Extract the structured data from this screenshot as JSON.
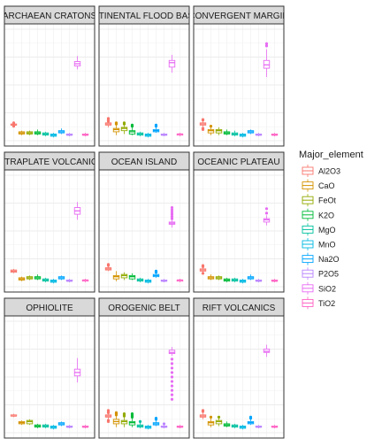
{
  "chart_data": {
    "type": "boxplot",
    "facet_layout": {
      "rows": 3,
      "cols": 3
    },
    "grid": true,
    "ylim": [
      0,
      100
    ],
    "legend": {
      "title": "Major_element",
      "position": "right",
      "entries": [
        {
          "name": "Al2O3",
          "color": "#F8766D"
        },
        {
          "name": "CaO",
          "color": "#D39200"
        },
        {
          "name": "FeOt",
          "color": "#93AA00"
        },
        {
          "name": "K2O",
          "color": "#00BA38"
        },
        {
          "name": "MgO",
          "color": "#00C19F"
        },
        {
          "name": "MnO",
          "color": "#00B9E3"
        },
        {
          "name": "Na2O",
          "color": "#00A5FF"
        },
        {
          "name": "P2O5",
          "color": "#B983FF"
        },
        {
          "name": "SiO2",
          "color": "#E76BF3"
        },
        {
          "name": "TiO2",
          "color": "#FF61C3"
        }
      ]
    },
    "categories": [
      "Al2O3",
      "CaO",
      "FeOt",
      "K2O",
      "MgO",
      "MnO",
      "Na2O",
      "P2O5",
      "SiO2",
      "TiO2"
    ],
    "panels": [
      {
        "title": "ARCHAEAN CRATONS",
        "boxes": [
          {
            "q1": 14,
            "med": 14,
            "q3": 15,
            "lo": 13,
            "hi": 16,
            "out": [
              13,
              14.5,
              16
            ]
          },
          {
            "q1": 6,
            "med": 7,
            "q3": 8,
            "lo": 5,
            "hi": 9,
            "out": []
          },
          {
            "q1": 6,
            "med": 7,
            "q3": 8,
            "lo": 5,
            "hi": 9,
            "out": []
          },
          {
            "q1": 6,
            "med": 7,
            "q3": 8,
            "lo": 5,
            "hi": 10,
            "out": []
          },
          {
            "q1": 5,
            "med": 6,
            "q3": 7,
            "lo": 4,
            "hi": 8,
            "out": []
          },
          {
            "q1": 4,
            "med": 5,
            "q3": 6,
            "lo": 3,
            "hi": 7,
            "out": []
          },
          {
            "q1": 7,
            "med": 8,
            "q3": 9,
            "lo": 6,
            "hi": 11,
            "out": []
          },
          {
            "q1": 5,
            "med": 5,
            "q3": 6,
            "lo": 4,
            "hi": 7,
            "out": []
          },
          {
            "q1": 67,
            "med": 69,
            "q3": 71,
            "lo": 64,
            "hi": 76,
            "out": []
          },
          {
            "q1": 5,
            "med": 5,
            "q3": 6,
            "lo": 4,
            "hi": 7,
            "out": []
          }
        ]
      },
      {
        "title": "CONTINENTAL FLOOD BASALT",
        "boxes": [
          {
            "q1": 14,
            "med": 15,
            "q3": 16,
            "lo": 12,
            "hi": 17,
            "out": [
              17.5,
              18,
              19,
              20
            ]
          },
          {
            "q1": 8,
            "med": 10,
            "q3": 11,
            "lo": 5,
            "hi": 14,
            "out": [
              15,
              16
            ]
          },
          {
            "q1": 9,
            "med": 11,
            "q3": 12,
            "lo": 6,
            "hi": 14,
            "out": [
              15,
              16
            ]
          },
          {
            "q1": 6,
            "med": 8,
            "q3": 9,
            "lo": 5,
            "hi": 12,
            "out": [
              13,
              14
            ]
          },
          {
            "q1": 5,
            "med": 6,
            "q3": 7,
            "lo": 4,
            "hi": 8,
            "out": []
          },
          {
            "q1": 4,
            "med": 5,
            "q3": 6,
            "lo": 3,
            "hi": 7,
            "out": []
          },
          {
            "q1": 8,
            "med": 9,
            "q3": 10,
            "lo": 7,
            "hi": 12,
            "out": [
              13,
              14
            ]
          },
          {
            "q1": 5,
            "med": 5,
            "q3": 6,
            "lo": 4,
            "hi": 7,
            "out": []
          },
          {
            "q1": 66,
            "med": 70,
            "q3": 72,
            "lo": 61,
            "hi": 77,
            "out": []
          },
          {
            "q1": 5,
            "med": 6,
            "q3": 6,
            "lo": 4,
            "hi": 7,
            "out": []
          }
        ]
      },
      {
        "title": "CONVERGENT MARGIN",
        "boxes": [
          {
            "q1": 14,
            "med": 15,
            "q3": 16,
            "lo": 12,
            "hi": 18,
            "out": [
              18.5,
              19,
              11,
              10
            ]
          },
          {
            "q1": 7,
            "med": 9,
            "q3": 10,
            "lo": 5,
            "hi": 12,
            "out": [
              13
            ]
          },
          {
            "q1": 7,
            "med": 9,
            "q3": 10,
            "lo": 5,
            "hi": 12,
            "out": []
          },
          {
            "q1": 6,
            "med": 7,
            "q3": 8,
            "lo": 5,
            "hi": 10,
            "out": []
          },
          {
            "q1": 5,
            "med": 6,
            "q3": 7,
            "lo": 4,
            "hi": 9,
            "out": []
          },
          {
            "q1": 4,
            "med": 5,
            "q3": 6,
            "lo": 3,
            "hi": 7,
            "out": []
          },
          {
            "q1": 7,
            "med": 8,
            "q3": 9,
            "lo": 6,
            "hi": 10,
            "out": []
          },
          {
            "q1": 5,
            "med": 5,
            "q3": 6,
            "lo": 4,
            "hi": 7,
            "out": []
          },
          {
            "q1": 65,
            "med": 68,
            "q3": 72,
            "lo": 57,
            "hi": 82,
            "out": [
              85,
              87
            ]
          },
          {
            "q1": 5,
            "med": 5,
            "q3": 6,
            "lo": 4,
            "hi": 7,
            "out": []
          }
        ]
      },
      {
        "title": "INTRAPLATE VOLCANICS",
        "boxes": [
          {
            "q1": 13,
            "med": 14,
            "q3": 15,
            "lo": 12,
            "hi": 16,
            "out": []
          },
          {
            "q1": 6,
            "med": 7,
            "q3": 8,
            "lo": 5,
            "hi": 9,
            "out": []
          },
          {
            "q1": 7,
            "med": 8,
            "q3": 9,
            "lo": 6,
            "hi": 10,
            "out": []
          },
          {
            "q1": 7,
            "med": 8,
            "q3": 9,
            "lo": 6,
            "hi": 11,
            "out": []
          },
          {
            "q1": 5,
            "med": 6,
            "q3": 7,
            "lo": 4,
            "hi": 8,
            "out": []
          },
          {
            "q1": 4,
            "med": 5,
            "q3": 6,
            "lo": 3,
            "hi": 7,
            "out": []
          },
          {
            "q1": 7,
            "med": 8,
            "q3": 9,
            "lo": 6,
            "hi": 10,
            "out": []
          },
          {
            "q1": 5,
            "med": 5,
            "q3": 6,
            "lo": 4,
            "hi": 7,
            "out": []
          },
          {
            "q1": 65,
            "med": 68,
            "q3": 71,
            "lo": 60,
            "hi": 76,
            "out": []
          },
          {
            "q1": 5,
            "med": 6,
            "q3": 6,
            "lo": 4,
            "hi": 7,
            "out": []
          }
        ]
      },
      {
        "title": "OCEAN ISLAND",
        "boxes": [
          {
            "q1": 15,
            "med": 16,
            "q3": 17,
            "lo": 14,
            "hi": 18,
            "out": [
              19,
              20
            ]
          },
          {
            "q1": 7,
            "med": 9,
            "q3": 10,
            "lo": 5,
            "hi": 14,
            "out": []
          },
          {
            "q1": 8,
            "med": 10,
            "q3": 11,
            "lo": 6,
            "hi": 13,
            "out": []
          },
          {
            "q1": 7,
            "med": 9,
            "q3": 10,
            "lo": 6,
            "hi": 12,
            "out": []
          },
          {
            "q1": 5,
            "med": 6,
            "q3": 7,
            "lo": 4,
            "hi": 8,
            "out": []
          },
          {
            "q1": 4,
            "med": 5,
            "q3": 6,
            "lo": 3,
            "hi": 7,
            "out": []
          },
          {
            "q1": 9,
            "med": 10,
            "q3": 11,
            "lo": 8,
            "hi": 12,
            "out": [
              13,
              14
            ]
          },
          {
            "q1": 5,
            "med": 5,
            "q3": 6,
            "lo": 4,
            "hi": 7,
            "out": []
          },
          {
            "q1": 56,
            "med": 57,
            "q3": 58,
            "lo": 53,
            "hi": 60,
            "out": [
              61,
              63,
              65,
              67,
              69,
              71
            ]
          },
          {
            "q1": 5,
            "med": 6,
            "q3": 6,
            "lo": 4,
            "hi": 7,
            "out": []
          }
        ]
      },
      {
        "title": "OCEANIC PLATEAU",
        "boxes": [
          {
            "q1": 14,
            "med": 15,
            "q3": 16,
            "lo": 13,
            "hi": 17,
            "out": [
              18,
              19,
              12
            ]
          },
          {
            "q1": 7,
            "med": 8,
            "q3": 9,
            "lo": 6,
            "hi": 11,
            "out": []
          },
          {
            "q1": 7,
            "med": 8,
            "q3": 9,
            "lo": 6,
            "hi": 10,
            "out": []
          },
          {
            "q1": 5,
            "med": 6,
            "q3": 7,
            "lo": 4,
            "hi": 8,
            "out": []
          },
          {
            "q1": 5,
            "med": 6,
            "q3": 7,
            "lo": 4,
            "hi": 8,
            "out": []
          },
          {
            "q1": 4,
            "med": 5,
            "q3": 6,
            "lo": 3,
            "hi": 7,
            "out": []
          },
          {
            "q1": 7,
            "med": 8,
            "q3": 9,
            "lo": 6,
            "hi": 11,
            "out": []
          },
          {
            "q1": 5,
            "med": 5,
            "q3": 6,
            "lo": 4,
            "hi": 7,
            "out": []
          },
          {
            "q1": 58,
            "med": 60,
            "q3": 61,
            "lo": 55,
            "hi": 64,
            "out": [
              66,
              70
            ]
          },
          {
            "q1": 5,
            "med": 5,
            "q3": 6,
            "lo": 4,
            "hi": 7,
            "out": []
          }
        ]
      },
      {
        "title": "OPHIOLITE",
        "boxes": [
          {
            "q1": 15,
            "med": 15,
            "q3": 16,
            "lo": 14,
            "hi": 17,
            "out": []
          },
          {
            "q1": 8,
            "med": 9,
            "q3": 10,
            "lo": 7,
            "hi": 11,
            "out": []
          },
          {
            "q1": 8,
            "med": 10,
            "q3": 11,
            "lo": 7,
            "hi": 12,
            "out": []
          },
          {
            "q1": 5,
            "med": 6,
            "q3": 7,
            "lo": 4,
            "hi": 8,
            "out": []
          },
          {
            "q1": 5,
            "med": 6,
            "q3": 7,
            "lo": 4,
            "hi": 8,
            "out": []
          },
          {
            "q1": 4,
            "med": 5,
            "q3": 6,
            "lo": 3,
            "hi": 7,
            "out": []
          },
          {
            "q1": 7,
            "med": 8,
            "q3": 9,
            "lo": 6,
            "hi": 10,
            "out": []
          },
          {
            "q1": 5,
            "med": 5,
            "q3": 6,
            "lo": 4,
            "hi": 7,
            "out": []
          },
          {
            "q1": 51,
            "med": 54,
            "q3": 57,
            "lo": 45,
            "hi": 67,
            "out": []
          },
          {
            "q1": 5,
            "med": 5,
            "q3": 6,
            "lo": 4,
            "hi": 7,
            "out": []
          }
        ]
      },
      {
        "title": "OROGENIC BELT",
        "boxes": [
          {
            "q1": 14,
            "med": 15,
            "q3": 16,
            "lo": 12,
            "hi": 17,
            "out": [
              10,
              11,
              18,
              19,
              20
            ]
          },
          {
            "q1": 8,
            "med": 10,
            "q3": 12,
            "lo": 5,
            "hi": 15,
            "out": [
              16,
              17,
              18
            ]
          },
          {
            "q1": 8,
            "med": 10,
            "q3": 11,
            "lo": 5,
            "hi": 14,
            "out": [
              15,
              16,
              17
            ]
          },
          {
            "q1": 7,
            "med": 9,
            "q3": 10,
            "lo": 5,
            "hi": 13,
            "out": [
              14,
              15,
              16,
              17
            ]
          },
          {
            "q1": 5,
            "med": 6,
            "q3": 7,
            "lo": 4,
            "hi": 9,
            "out": [
              10
            ]
          },
          {
            "q1": 4,
            "med": 5,
            "q3": 6,
            "lo": 3,
            "hi": 7,
            "out": []
          },
          {
            "q1": 7,
            "med": 8,
            "q3": 9,
            "lo": 6,
            "hi": 11,
            "out": [
              12,
              13
            ]
          },
          {
            "q1": 5,
            "med": 5,
            "q3": 6,
            "lo": 4,
            "hi": 7,
            "out": [
              8
            ]
          },
          {
            "q1": 71,
            "med": 72,
            "q3": 74,
            "lo": 69,
            "hi": 77,
            "out": [
              30,
              34,
              38,
              42,
              46,
              50,
              54,
              58,
              62,
              66
            ]
          },
          {
            "q1": 5,
            "med": 5,
            "q3": 6,
            "lo": 4,
            "hi": 7,
            "out": []
          }
        ]
      },
      {
        "title": "RIFT VOLCANICS",
        "boxes": [
          {
            "q1": 14,
            "med": 15,
            "q3": 16,
            "lo": 12,
            "hi": 18,
            "out": [
              19,
              20
            ]
          },
          {
            "q1": 7,
            "med": 9,
            "q3": 10,
            "lo": 5,
            "hi": 13,
            "out": [
              14
            ]
          },
          {
            "q1": 8,
            "med": 10,
            "q3": 11,
            "lo": 6,
            "hi": 13,
            "out": [
              14
            ]
          },
          {
            "q1": 6,
            "med": 7,
            "q3": 8,
            "lo": 5,
            "hi": 10,
            "out": []
          },
          {
            "q1": 5,
            "med": 6,
            "q3": 7,
            "lo": 4,
            "hi": 8,
            "out": []
          },
          {
            "q1": 4,
            "med": 5,
            "q3": 6,
            "lo": 3,
            "hi": 7,
            "out": []
          },
          {
            "q1": 8,
            "med": 9,
            "q3": 10,
            "lo": 7,
            "hi": 12,
            "out": [
              13,
              14
            ]
          },
          {
            "q1": 5,
            "med": 5,
            "q3": 6,
            "lo": 4,
            "hi": 7,
            "out": []
          },
          {
            "q1": 72,
            "med": 73,
            "q3": 75,
            "lo": 68,
            "hi": 79,
            "out": []
          },
          {
            "q1": 5,
            "med": 5,
            "q3": 6,
            "lo": 4,
            "hi": 7,
            "out": []
          }
        ]
      }
    ]
  }
}
